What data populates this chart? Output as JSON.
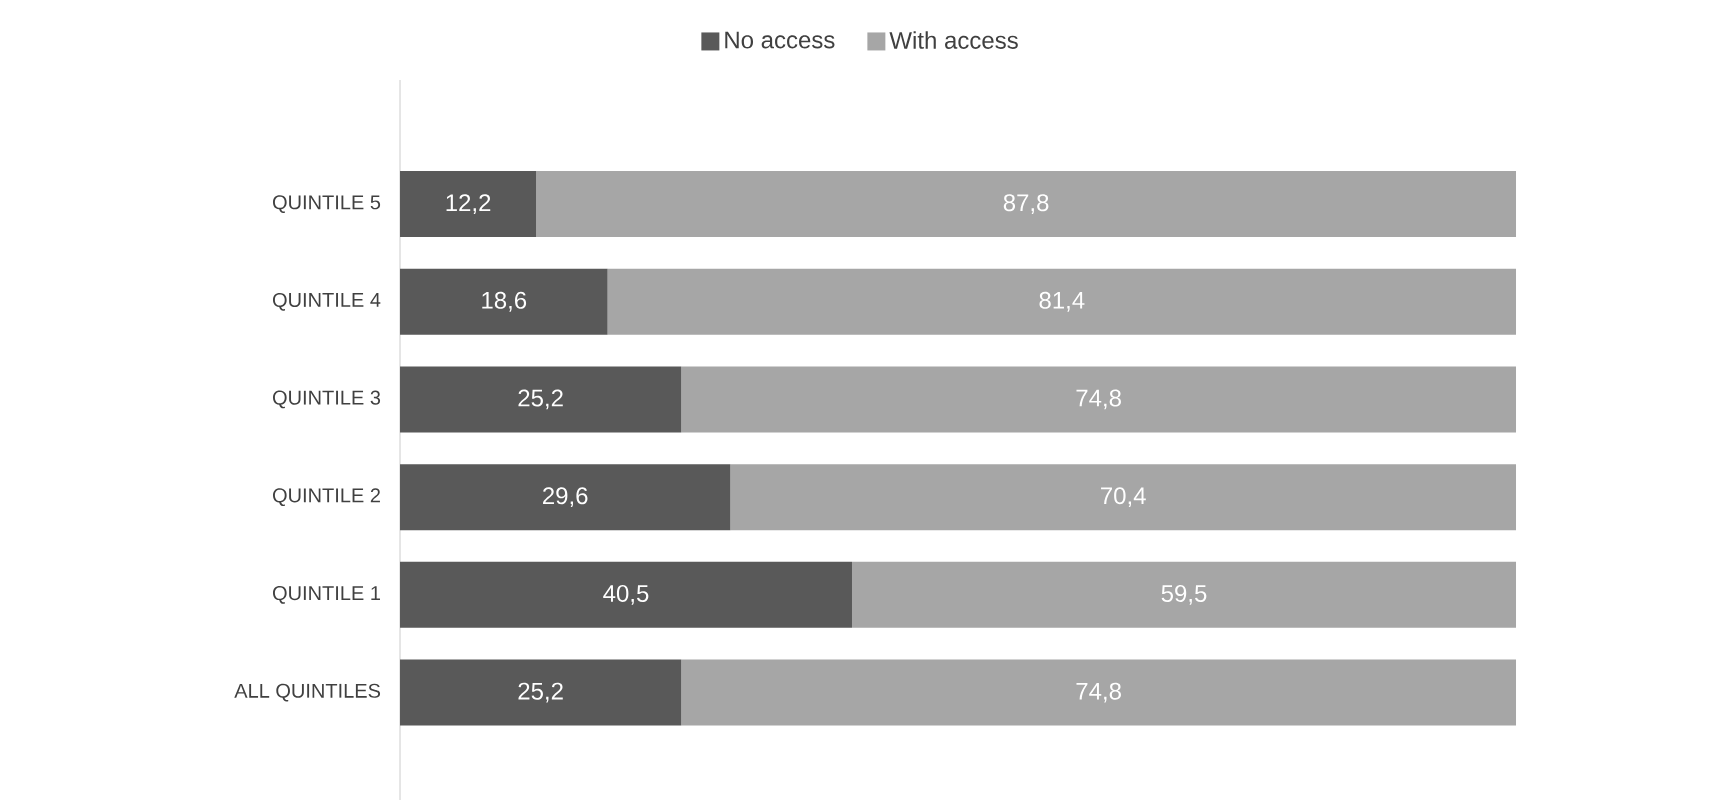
{
  "chart_data": {
    "type": "bar",
    "orientation": "horizontal",
    "stacked": true,
    "legend": "top",
    "categories": [
      "QUINTILE 5",
      "QUINTILE 4",
      "QUINTILE 3",
      "QUINTILE 2",
      "QUINTILE 1",
      "ALL QUINTILES"
    ],
    "series": [
      {
        "name": "No access",
        "color": "#595959",
        "values": [
          12.2,
          18.6,
          25.2,
          29.6,
          40.5,
          25.2
        ],
        "value_labels": [
          "12,2",
          "18,6",
          "25,2",
          "29,6",
          "40,5",
          "25,2"
        ]
      },
      {
        "name": "With access",
        "color": "#a6a6a6",
        "values": [
          87.8,
          81.4,
          74.8,
          70.4,
          59.5,
          74.8
        ],
        "value_labels": [
          "87,8",
          "81,4",
          "74,8",
          "70,4",
          "59,5",
          "74,8"
        ]
      }
    ]
  }
}
